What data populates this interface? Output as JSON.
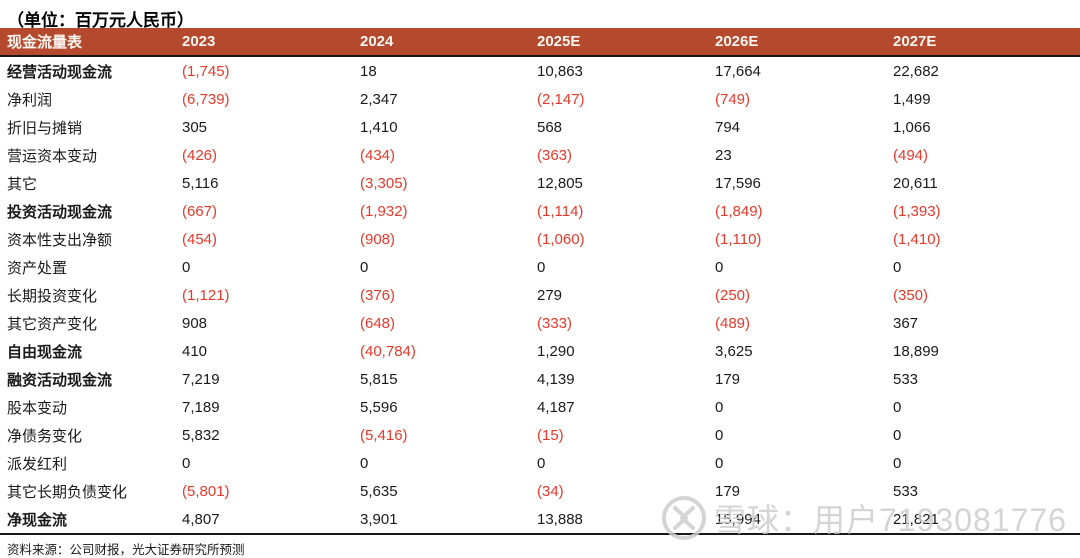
{
  "title": "（单位：百万元人民币）",
  "table": {
    "header": [
      "现金流量表",
      "2023",
      "2024",
      "2025E",
      "2026E",
      "2027E"
    ],
    "rows": [
      {
        "label": "经营活动现金流",
        "bold": true,
        "values": [
          "(1,745)",
          "18",
          "10,863",
          "17,664",
          "22,682"
        ]
      },
      {
        "label": "净利润",
        "bold": false,
        "values": [
          "(6,739)",
          "2,347",
          "(2,147)",
          "(749)",
          "1,499"
        ]
      },
      {
        "label": "折旧与摊销",
        "bold": false,
        "values": [
          "305",
          "1,410",
          "568",
          "794",
          "1,066"
        ]
      },
      {
        "label": "营运资本变动",
        "bold": false,
        "values": [
          "(426)",
          "(434)",
          "(363)",
          "23",
          "(494)"
        ]
      },
      {
        "label": "其它",
        "bold": false,
        "values": [
          "5,116",
          "(3,305)",
          "12,805",
          "17,596",
          "20,611"
        ]
      },
      {
        "label": "投资活动现金流",
        "bold": true,
        "values": [
          "(667)",
          "(1,932)",
          "(1,114)",
          "(1,849)",
          "(1,393)"
        ]
      },
      {
        "label": "资本性支出净额",
        "bold": false,
        "values": [
          "(454)",
          "(908)",
          "(1,060)",
          "(1,110)",
          "(1,410)"
        ]
      },
      {
        "label": "资产处置",
        "bold": false,
        "values": [
          "0",
          "0",
          "0",
          "0",
          "0"
        ]
      },
      {
        "label": "长期投资变化",
        "bold": false,
        "values": [
          "(1,121)",
          "(376)",
          "279",
          "(250)",
          "(350)"
        ]
      },
      {
        "label": "其它资产变化",
        "bold": false,
        "values": [
          "908",
          "(648)",
          "(333)",
          "(489)",
          "367"
        ]
      },
      {
        "label": "自由现金流",
        "bold": true,
        "values": [
          "410",
          "(40,784)",
          "1,290",
          "3,625",
          "18,899"
        ]
      },
      {
        "label": "融资活动现金流",
        "bold": true,
        "values": [
          "7,219",
          "5,815",
          "4,139",
          "179",
          "533"
        ]
      },
      {
        "label": "股本变动",
        "bold": false,
        "values": [
          "7,189",
          "5,596",
          "4,187",
          "0",
          "0"
        ]
      },
      {
        "label": "净债务变化",
        "bold": false,
        "values": [
          "5,832",
          "(5,416)",
          "(15)",
          "0",
          "0"
        ]
      },
      {
        "label": "派发红利",
        "bold": false,
        "values": [
          "0",
          "0",
          "0",
          "0",
          "0"
        ]
      },
      {
        "label": "其它长期负债变化",
        "bold": false,
        "values": [
          "(5,801)",
          "5,635",
          "(34)",
          "179",
          "533"
        ]
      },
      {
        "label": "净现金流",
        "bold": true,
        "values": [
          "4,807",
          "3,901",
          "13,888",
          "15,994",
          "21,821"
        ]
      }
    ]
  },
  "footer": {
    "source_note": "资料来源：公司财报，光大证券研究所预测"
  },
  "watermark": {
    "logo": "xueqiu-snowball-icon",
    "text": "雪球：用户7193081776"
  },
  "colors": {
    "header_bg": "#B5492D",
    "header_text": "#FDF6F2",
    "negative_value": "#E8382A",
    "body_text": "#1A1A1A",
    "watermark_gray": "#CDCDCD"
  }
}
